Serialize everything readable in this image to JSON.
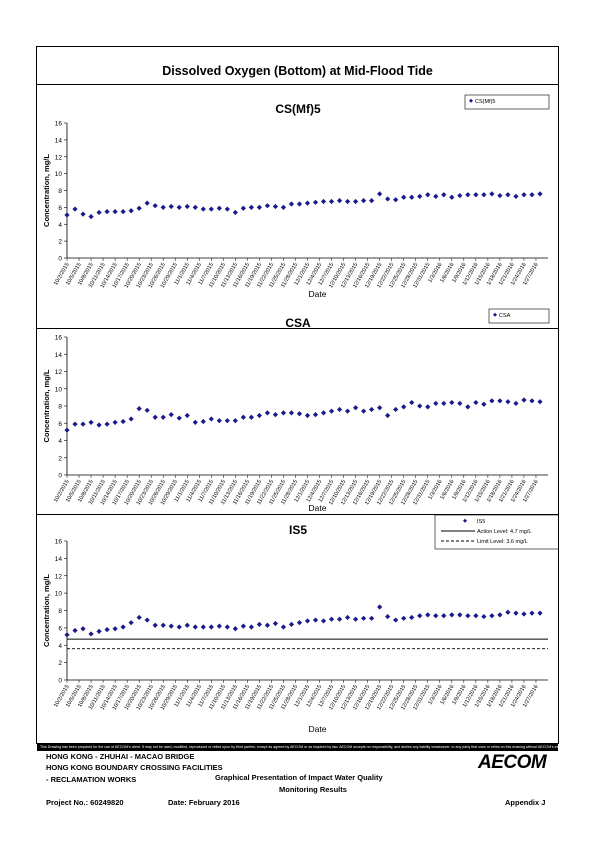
{
  "main_title": "Dissolved Oxygen (Bottom) at Mid-Flood Tide",
  "date_labels": [
    "10/2/2015",
    "10/5/2015",
    "10/8/2015",
    "10/11/2015",
    "10/14/2015",
    "10/17/2015",
    "10/20/2015",
    "10/23/2015",
    "10/26/2015",
    "10/29/2015",
    "11/1/2015",
    "11/4/2015",
    "11/7/2015",
    "11/10/2015",
    "11/13/2015",
    "11/16/2015",
    "11/19/2015",
    "11/22/2015",
    "11/25/2015",
    "11/28/2015",
    "12/1/2015",
    "12/4/2015",
    "12/7/2015",
    "12/10/2015",
    "12/13/2015",
    "12/16/2015",
    "12/19/2015",
    "12/22/2015",
    "12/25/2015",
    "12/28/2015",
    "12/31/2015",
    "1/3/2016",
    "1/6/2016",
    "1/9/2016",
    "1/12/2016",
    "1/15/2016",
    "1/18/2016",
    "1/21/2016",
    "1/24/2016",
    "1/27/2016"
  ],
  "chart_data": [
    {
      "type": "scatter",
      "title": "CS(Mf)5",
      "xlabel": "Date",
      "ylabel": "Concentration, mg/L",
      "ylim": [
        0,
        16
      ],
      "yticks": [
        0,
        2,
        4,
        6,
        8,
        10,
        12,
        14,
        16
      ],
      "x_range": [
        "10/2/2015",
        "1/30/2016"
      ],
      "legend_position": "top-right",
      "series": [
        {
          "name": "CS(Mf)5",
          "color": "#1a1a8a",
          "x": [
            0,
            2,
            4,
            6,
            8,
            10,
            12,
            14,
            16,
            18,
            20,
            22,
            24,
            26,
            28,
            30,
            32,
            34,
            36,
            38,
            40,
            42,
            44,
            46,
            48,
            50,
            52,
            54,
            56,
            58,
            60,
            62,
            64,
            66,
            68,
            70,
            72,
            74,
            76,
            78,
            80,
            82,
            84,
            86,
            88,
            90,
            92,
            94,
            96,
            98,
            100,
            102,
            104,
            106,
            108,
            110,
            112,
            114,
            116,
            118
          ],
          "y": [
            5.1,
            5.8,
            5.2,
            4.9,
            5.4,
            5.5,
            5.5,
            5.5,
            5.6,
            5.9,
            6.5,
            6.2,
            6.0,
            6.1,
            6.0,
            6.1,
            6.0,
            5.8,
            5.8,
            5.9,
            5.8,
            5.4,
            5.9,
            6.0,
            6.0,
            6.2,
            6.1,
            6.0,
            6.4,
            6.4,
            6.5,
            6.6,
            6.7,
            6.7,
            6.8,
            6.7,
            6.7,
            6.8,
            6.8,
            7.6,
            7.0,
            6.9,
            7.2,
            7.2,
            7.3,
            7.5,
            7.3,
            7.5,
            7.2,
            7.4,
            7.5,
            7.5,
            7.5,
            7.6,
            7.4,
            7.5,
            7.3,
            7.5,
            7.5,
            7.6
          ]
        }
      ]
    },
    {
      "type": "scatter",
      "title": "CSA",
      "xlabel": "Date",
      "ylabel": "Concentration, mg/L",
      "ylim": [
        0,
        16
      ],
      "yticks": [
        0,
        2,
        4,
        6,
        8,
        10,
        12,
        14,
        16
      ],
      "x_range": [
        "10/2/2015",
        "1/30/2016"
      ],
      "legend_position": "top-right",
      "series": [
        {
          "name": "CSA",
          "color": "#1a1a8a",
          "x": [
            0,
            2,
            4,
            6,
            8,
            10,
            12,
            14,
            16,
            18,
            20,
            22,
            24,
            26,
            28,
            30,
            32,
            34,
            36,
            38,
            40,
            42,
            44,
            46,
            48,
            50,
            52,
            54,
            56,
            58,
            60,
            62,
            64,
            66,
            68,
            70,
            72,
            74,
            76,
            78,
            80,
            82,
            84,
            86,
            88,
            90,
            92,
            94,
            96,
            98,
            100,
            102,
            104,
            106,
            108,
            110,
            112,
            114,
            116,
            118
          ],
          "y": [
            5.2,
            5.9,
            5.9,
            6.1,
            5.8,
            5.9,
            6.1,
            6.2,
            6.5,
            7.7,
            7.5,
            6.7,
            6.7,
            7.0,
            6.6,
            6.9,
            6.1,
            6.2,
            6.5,
            6.3,
            6.3,
            6.3,
            6.7,
            6.7,
            6.9,
            7.2,
            7.0,
            7.2,
            7.2,
            7.1,
            6.9,
            7.0,
            7.2,
            7.4,
            7.6,
            7.4,
            7.8,
            7.4,
            7.6,
            7.8,
            6.9,
            7.6,
            7.9,
            8.4,
            8.0,
            7.9,
            8.3,
            8.3,
            8.4,
            8.3,
            7.9,
            8.4,
            8.2,
            8.6,
            8.6,
            8.5,
            8.3,
            8.7,
            8.6,
            8.5
          ]
        }
      ]
    },
    {
      "type": "scatter",
      "title": "IS5",
      "xlabel": "Date",
      "ylabel": "Concentration, mg/L",
      "ylim": [
        0,
        16
      ],
      "yticks": [
        0,
        2,
        4,
        6,
        8,
        10,
        12,
        14,
        16
      ],
      "x_range": [
        "10/2/2015",
        "1/30/2016"
      ],
      "legend_position": "top-right",
      "action_level": 4.7,
      "limit_level": 3.6,
      "series": [
        {
          "name": "IS5",
          "color": "#1a1a8a",
          "x": [
            0,
            2,
            4,
            6,
            8,
            10,
            12,
            14,
            16,
            18,
            20,
            22,
            24,
            26,
            28,
            30,
            32,
            34,
            36,
            38,
            40,
            42,
            44,
            46,
            48,
            50,
            52,
            54,
            56,
            58,
            60,
            62,
            64,
            66,
            68,
            70,
            72,
            74,
            76,
            78,
            80,
            82,
            84,
            86,
            88,
            90,
            92,
            94,
            96,
            98,
            100,
            102,
            104,
            106,
            108,
            110,
            112,
            114,
            116,
            118
          ],
          "y": [
            5.2,
            5.7,
            5.9,
            5.3,
            5.6,
            5.8,
            5.9,
            6.1,
            6.6,
            7.2,
            6.9,
            6.3,
            6.3,
            6.2,
            6.1,
            6.3,
            6.1,
            6.1,
            6.1,
            6.2,
            6.1,
            5.9,
            6.2,
            6.1,
            6.4,
            6.3,
            6.5,
            6.1,
            6.4,
            6.6,
            6.8,
            6.9,
            6.8,
            7.0,
            7.0,
            7.2,
            7.0,
            7.1,
            7.1,
            8.4,
            7.3,
            6.9,
            7.1,
            7.2,
            7.4,
            7.5,
            7.4,
            7.4,
            7.5,
            7.5,
            7.4,
            7.4,
            7.3,
            7.4,
            7.5,
            7.8,
            7.7,
            7.6,
            7.7,
            7.7
          ]
        }
      ],
      "legend_entries": [
        "IS5",
        "Action Level: 4.7 mg/L",
        "Limit Level: 3.6 mg/L"
      ]
    }
  ],
  "disclaimer": "This Drawing has been prepared for the use of AECOM's client. It may not be used, modified, reproduced or relied upon by third parties, except as agreed by AECOM or as required by law. AECOM accepts no responsibility, and denies any liability whatsoever, to any party that uses or relies on this drawing without AECOM's express written consent.",
  "footer": {
    "line1": "HONG KONG - ZHUHAI - MACAO BRIDGE",
    "line2": "HONG KONG BOUNDARY CROSSING FACILITIES",
    "line3": "- RECLAMATION WORKS",
    "center1": "Graphical Presentation of Impact Water Quality",
    "center2": "Monitoring Results",
    "project": "Project No.: 60249820",
    "date": "Date: February 2016",
    "appendix": "Appendix J",
    "logo": "AECOM"
  }
}
